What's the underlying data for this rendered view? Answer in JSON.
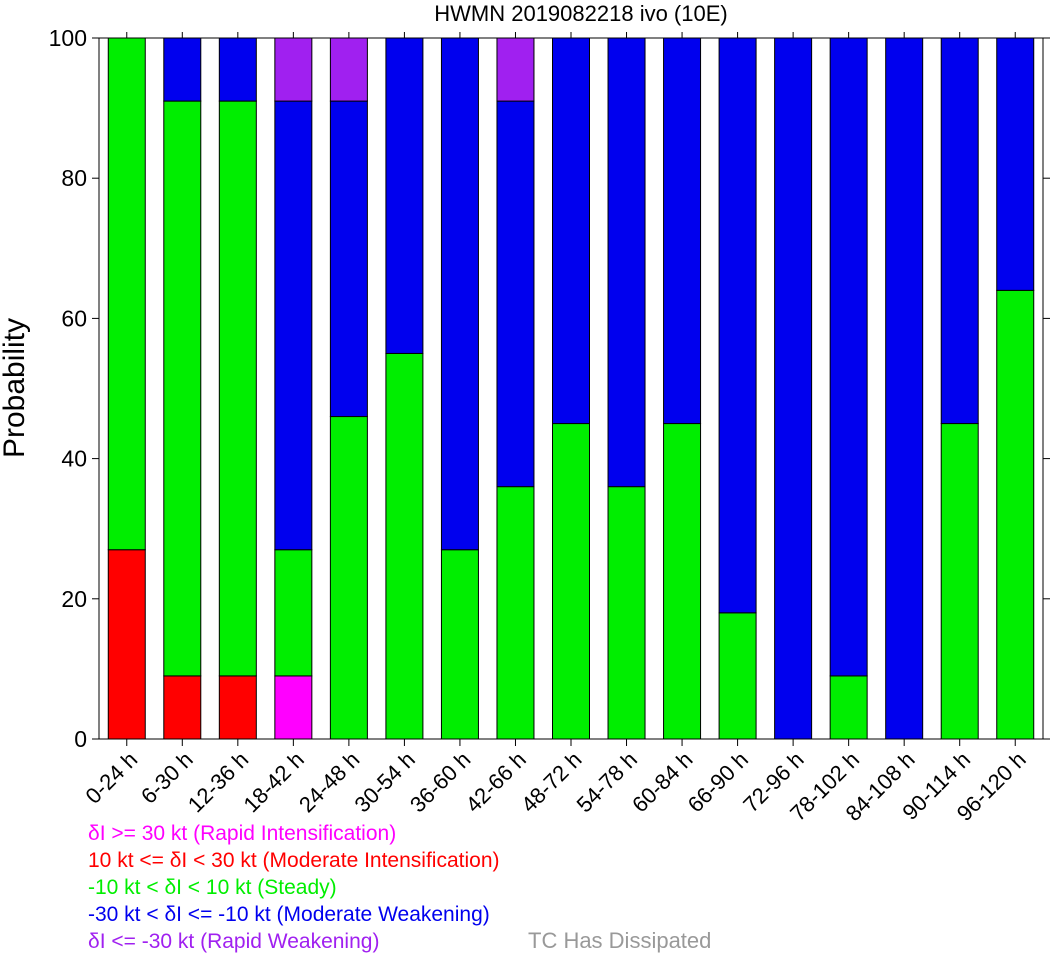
{
  "chart_data": {
    "type": "bar",
    "stacked": true,
    "title": "HWMN 2019082218 ivo (10E)",
    "ylabel": "Probability",
    "xlabel": "",
    "ylim": [
      0,
      100
    ],
    "yticks": [
      "0",
      "20",
      "40",
      "60",
      "80",
      "100"
    ],
    "categories": [
      "0-24 h",
      "6-30 h",
      "12-36 h",
      "18-42 h",
      "24-48 h",
      "30-54 h",
      "36-60 h",
      "42-66 h",
      "48-72 h",
      "54-78 h",
      "60-84 h",
      "66-90 h",
      "72-96 h",
      "78-102 h",
      "84-108 h",
      "90-114 h",
      "96-120 h"
    ],
    "series": [
      {
        "key": "ri",
        "color": "#ff00ff",
        "values": [
          0,
          0,
          0,
          9,
          0,
          0,
          0,
          0,
          0,
          0,
          0,
          0,
          0,
          0,
          0,
          0,
          0
        ]
      },
      {
        "key": "mi",
        "color": "#ff0000",
        "values": [
          27,
          9,
          9,
          0,
          0,
          0,
          0,
          0,
          0,
          0,
          0,
          0,
          0,
          0,
          0,
          0,
          0
        ]
      },
      {
        "key": "st",
        "color": "#00ee00",
        "values": [
          73,
          82,
          82,
          18,
          46,
          55,
          27,
          36,
          45,
          36,
          45,
          18,
          0,
          9,
          0,
          45,
          64
        ]
      },
      {
        "key": "mw",
        "color": "#0000ee",
        "values": [
          0,
          9,
          9,
          64,
          45,
          45,
          73,
          55,
          55,
          64,
          55,
          82,
          100,
          91,
          100,
          55,
          36
        ]
      },
      {
        "key": "rw",
        "color": "#a020f0",
        "values": [
          0,
          0,
          0,
          9,
          9,
          0,
          0,
          9,
          0,
          0,
          0,
          0,
          0,
          0,
          0,
          0,
          0
        ]
      }
    ]
  },
  "legend": {
    "items": [
      {
        "text": "δI >= 30 kt (Rapid Intensification)",
        "color": "#ff00ff"
      },
      {
        "text": "10 kt <= δI < 30 kt (Moderate Intensification)",
        "color": "#ff0000"
      },
      {
        "text": "-10 kt < δI < 10 kt (Steady)",
        "color": "#00ee00"
      },
      {
        "text": "-30 kt < δI <= -10 kt (Moderate Weakening)",
        "color": "#0000ee"
      },
      {
        "text": "δI <= -30 kt (Rapid Weakening)",
        "color": "#a020f0"
      }
    ],
    "dissipated": "TC Has Dissipated",
    "dissipated_color": "#999999"
  }
}
